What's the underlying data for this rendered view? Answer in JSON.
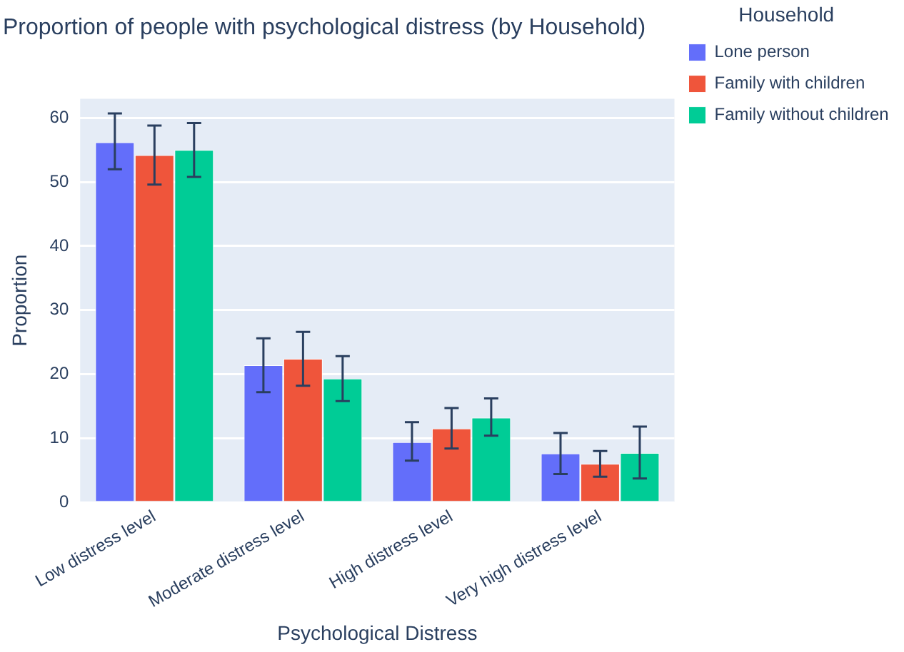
{
  "chart_data": {
    "type": "bar",
    "title": "Proportion of people with psychological distress (by Household)",
    "xlabel": "Psychological Distress",
    "ylabel": "Proportion",
    "legend_title": "Household",
    "categories": [
      "Low distress level",
      "Moderate distress level",
      "High distress level",
      "Very high distress level"
    ],
    "series": [
      {
        "name": "Lone person",
        "color": "#636efa",
        "values": [
          56.2,
          21.4,
          9.4,
          7.6
        ],
        "errors": [
          [
            52,
            60.7
          ],
          [
            17.2,
            25.6
          ],
          [
            6.5,
            12.5
          ],
          [
            4.4,
            10.8
          ]
        ]
      },
      {
        "name": "Family with children",
        "color": "#ef553b",
        "values": [
          54.2,
          22.4,
          11.5,
          6
        ],
        "errors": [
          [
            49.6,
            58.8
          ],
          [
            18.2,
            26.6
          ],
          [
            8.4,
            14.7
          ],
          [
            4,
            8
          ]
        ]
      },
      {
        "name": "Family without children",
        "color": "#00cc96",
        "values": [
          55,
          19.3,
          13.2,
          7.7
        ],
        "errors": [
          [
            50.8,
            59.2
          ],
          [
            15.8,
            22.8
          ],
          [
            10.4,
            16.2
          ],
          [
            3.7,
            11.8
          ]
        ]
      }
    ],
    "ylim": [
      0,
      63
    ],
    "yticks": [
      0,
      10,
      20,
      30,
      40,
      50,
      60
    ],
    "grid": "y",
    "legend": "top right"
  }
}
